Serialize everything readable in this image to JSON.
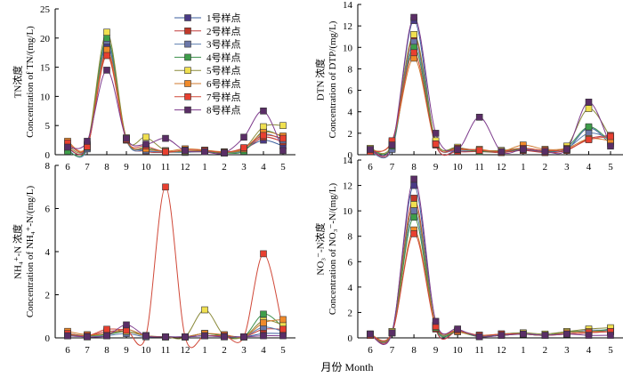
{
  "figure": {
    "xlabel": "月份 Month",
    "legend": [
      "1号样点",
      "2号样点",
      "3号样点",
      "4号样点",
      "5号样点",
      "6号样点",
      "7号样点",
      "8号样点"
    ],
    "colors": {
      "series": [
        "#4a3a86",
        "#c0392b",
        "#6b77a8",
        "#3e9e4a",
        "#f0e050",
        "#f08a2a",
        "#e84030",
        "#5a2e66"
      ],
      "line": [
        "#3a5e9e",
        "#c23b3b",
        "#5e7fb0",
        "#3a8f4a",
        "#8a8a3a",
        "#d07a2e",
        "#d04838",
        "#7d3a8c"
      ]
    }
  },
  "chart_data": [
    {
      "type": "line",
      "ylabel_cn": "TN浓度",
      "ylabel_en": "Concentration of TN/(mg/L)",
      "categories": [
        "6",
        "7",
        "8",
        "9",
        "10",
        "11",
        "12",
        "1",
        "2",
        "3",
        "4",
        "5"
      ],
      "yticks": [
        "0",
        "5",
        "10",
        "15",
        "20",
        "25"
      ],
      "ylim": [
        0,
        25
      ],
      "legend_position": "top-right",
      "series": [
        {
          "name": "1号样点",
          "values": [
            1.0,
            1.5,
            18.8,
            2.8,
            0.8,
            0.5,
            0.6,
            0.6,
            0.3,
            1.0,
            2.5,
            1.5
          ]
        },
        {
          "name": "2号样点",
          "values": [
            1.2,
            1.2,
            17.5,
            2.5,
            0.6,
            0.4,
            0.5,
            0.5,
            0.3,
            0.8,
            3.0,
            2.2
          ]
        },
        {
          "name": "3号样点",
          "values": [
            0.8,
            1.0,
            19.5,
            2.6,
            0.7,
            0.5,
            0.4,
            0.6,
            0.4,
            0.7,
            3.5,
            2.5
          ]
        },
        {
          "name": "4号样点",
          "values": [
            0.6,
            1.3,
            20.0,
            2.7,
            1.2,
            0.6,
            0.5,
            0.5,
            0.3,
            0.6,
            4.0,
            3.0
          ]
        },
        {
          "name": "5号样点",
          "values": [
            1.5,
            1.8,
            21.0,
            2.9,
            3.0,
            0.7,
            0.6,
            0.7,
            0.4,
            1.0,
            4.8,
            5.0
          ]
        },
        {
          "name": "6号样点",
          "values": [
            2.3,
            1.6,
            18.0,
            2.7,
            1.0,
            0.6,
            1.0,
            0.8,
            0.5,
            1.0,
            3.8,
            3.2
          ]
        },
        {
          "name": "7号样点",
          "values": [
            2.0,
            1.4,
            17.0,
            2.6,
            1.5,
            0.5,
            0.8,
            0.7,
            0.4,
            1.2,
            3.3,
            2.8
          ]
        },
        {
          "name": "8号样点",
          "values": [
            1.3,
            2.3,
            14.5,
            2.8,
            1.8,
            2.8,
            0.7,
            0.5,
            0.3,
            3.0,
            7.5,
            0.7
          ]
        }
      ]
    },
    {
      "type": "line",
      "ylabel_cn": "DTN 浓度",
      "ylabel_en": "Concentration of DTP/(mg/L)",
      "categories": [
        "6",
        "7",
        "8",
        "9",
        "10",
        "11",
        "12",
        "1",
        "2",
        "3",
        "4",
        "5"
      ],
      "yticks": [
        "0",
        "2",
        "4",
        "6",
        "8",
        "10",
        "12",
        "14"
      ],
      "ylim": [
        0,
        14
      ],
      "series": [
        {
          "name": "1号样点",
          "values": [
            0.5,
            0.7,
            12.5,
            1.0,
            0.4,
            0.3,
            0.3,
            0.4,
            0.3,
            0.5,
            2.5,
            1.0
          ]
        },
        {
          "name": "2号样点",
          "values": [
            0.4,
            0.6,
            11.0,
            0.9,
            0.3,
            0.3,
            0.2,
            0.4,
            0.2,
            0.4,
            1.5,
            1.8
          ]
        },
        {
          "name": "3号样点",
          "values": [
            0.3,
            0.5,
            10.5,
            1.1,
            0.5,
            0.4,
            0.3,
            0.5,
            0.3,
            0.6,
            2.0,
            1.5
          ]
        },
        {
          "name": "4号样点",
          "values": [
            0.5,
            0.8,
            10.0,
            1.2,
            0.6,
            0.3,
            0.3,
            0.5,
            0.3,
            0.7,
            2.6,
            1.2
          ]
        },
        {
          "name": "5号样点",
          "values": [
            0.6,
            1.0,
            11.2,
            1.3,
            0.7,
            0.4,
            0.4,
            0.6,
            0.4,
            0.8,
            4.3,
            1.6
          ]
        },
        {
          "name": "6号样点",
          "values": [
            0.4,
            1.2,
            9.0,
            1.0,
            0.5,
            0.5,
            0.3,
            0.9,
            0.5,
            0.6,
            1.5,
            1.3
          ]
        },
        {
          "name": "7号样点",
          "values": [
            0.3,
            1.3,
            9.5,
            1.0,
            0.6,
            0.4,
            0.3,
            0.6,
            0.4,
            0.5,
            1.4,
            1.7
          ]
        },
        {
          "name": "8号样点",
          "values": [
            0.5,
            0.9,
            12.8,
            2.0,
            0.5,
            3.5,
            0.3,
            0.5,
            0.3,
            0.5,
            4.9,
            0.8
          ]
        }
      ]
    },
    {
      "type": "line",
      "ylabel_cn": "NH₄⁺-N 浓度",
      "ylabel_en": "Concentration of NH₄⁺-N/(mg/L)",
      "categories": [
        "6",
        "7",
        "8",
        "9",
        "10",
        "11",
        "12",
        "1",
        "2",
        "3",
        "4",
        "5"
      ],
      "yticks": [
        "0",
        "2",
        "4",
        "6",
        "8"
      ],
      "ylim": [
        0,
        8
      ],
      "series": [
        {
          "name": "1号样点",
          "values": [
            0.1,
            0.1,
            0.2,
            0.4,
            0.1,
            0.05,
            0.05,
            0.1,
            0.1,
            0.05,
            0.2,
            0.2
          ]
        },
        {
          "name": "2号样点",
          "values": [
            0.2,
            0.1,
            0.3,
            0.3,
            0.1,
            0.05,
            0.05,
            0.2,
            0.1,
            0.05,
            0.4,
            0.4
          ]
        },
        {
          "name": "3号样点",
          "values": [
            0.1,
            0.05,
            0.1,
            0.2,
            0.05,
            0.05,
            0.05,
            0.1,
            0.05,
            0.05,
            0.5,
            0.3
          ]
        },
        {
          "name": "4号样点",
          "values": [
            0.2,
            0.1,
            0.15,
            0.3,
            0.1,
            0.05,
            0.05,
            0.2,
            0.1,
            0.05,
            1.1,
            0.5
          ]
        },
        {
          "name": "5号样点",
          "values": [
            0.15,
            0.1,
            0.2,
            0.3,
            0.1,
            0.05,
            0.05,
            1.3,
            0.1,
            0.05,
            0.8,
            0.6
          ]
        },
        {
          "name": "6号样点",
          "values": [
            0.3,
            0.15,
            0.2,
            0.4,
            0.1,
            0.05,
            0.05,
            0.2,
            0.15,
            0.05,
            0.7,
            0.85
          ]
        },
        {
          "name": "7号样点",
          "values": [
            0.2,
            0.1,
            0.4,
            0.35,
            0.1,
            7.0,
            0.05,
            0.1,
            0.1,
            0.05,
            3.9,
            0.4
          ]
        },
        {
          "name": "8号样点",
          "values": [
            0.1,
            0.05,
            0.1,
            0.6,
            0.1,
            0.05,
            0.05,
            0.1,
            0.05,
            0.05,
            0.1,
            0.1
          ]
        }
      ]
    },
    {
      "type": "line",
      "ylabel_cn": "NO₃⁻-N浓度",
      "ylabel_en": "Concentration of NO₃⁻-N/(mg/L)",
      "categories": [
        "6",
        "7",
        "8",
        "9",
        "10",
        "11",
        "12",
        "1",
        "2",
        "3",
        "4",
        "5"
      ],
      "yticks": [
        "0",
        "2",
        "4",
        "6",
        "8",
        "10",
        "12",
        "14"
      ],
      "ylim": [
        0,
        14
      ],
      "series": [
        {
          "name": "1号样点",
          "values": [
            0.3,
            0.5,
            12.0,
            0.8,
            0.6,
            0.1,
            0.3,
            0.3,
            0.2,
            0.4,
            0.5,
            0.6
          ]
        },
        {
          "name": "2号样点",
          "values": [
            0.2,
            0.4,
            11.0,
            0.7,
            0.5,
            0.1,
            0.2,
            0.3,
            0.2,
            0.3,
            0.4,
            0.5
          ]
        },
        {
          "name": "3号样点",
          "values": [
            0.3,
            0.5,
            10.0,
            0.9,
            0.6,
            0.2,
            0.3,
            0.4,
            0.2,
            0.4,
            0.6,
            0.6
          ]
        },
        {
          "name": "4号样点",
          "values": [
            0.2,
            0.4,
            9.5,
            0.8,
            0.5,
            0.1,
            0.2,
            0.3,
            0.2,
            0.5,
            0.5,
            0.7
          ]
        },
        {
          "name": "5号样点",
          "values": [
            0.2,
            0.5,
            10.5,
            1.0,
            0.6,
            0.2,
            0.3,
            0.4,
            0.3,
            0.5,
            0.7,
            0.8
          ]
        },
        {
          "name": "6号样点",
          "values": [
            0.3,
            0.4,
            8.5,
            1.0,
            0.5,
            0.2,
            0.3,
            0.3,
            0.2,
            0.4,
            0.5,
            0.5
          ]
        },
        {
          "name": "7号样点",
          "values": [
            0.2,
            0.4,
            8.2,
            0.9,
            0.6,
            0.2,
            0.3,
            0.3,
            0.2,
            0.3,
            0.4,
            0.5
          ]
        },
        {
          "name": "8号样点",
          "values": [
            0.3,
            0.4,
            12.5,
            1.3,
            0.7,
            0.1,
            0.2,
            0.3,
            0.2,
            0.3,
            0.2,
            0.2
          ]
        }
      ]
    }
  ]
}
